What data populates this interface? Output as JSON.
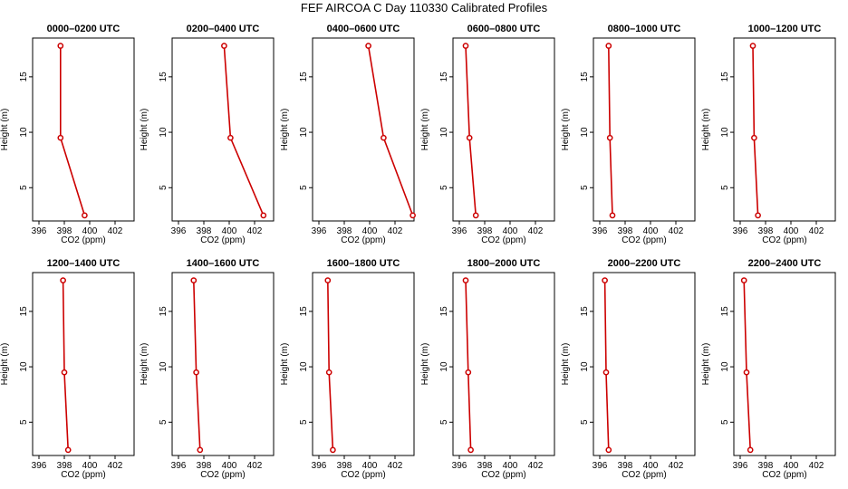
{
  "figure": {
    "title": "FEF  AIRCOA C  Day 110330  Calibrated Profiles"
  },
  "colors": {
    "profile_line": "#cc0000",
    "axis": "#000000"
  },
  "chart_data": [
    {
      "type": "line",
      "title": "0000–0200 UTC",
      "xlabel": "CO2 (ppm)",
      "ylabel": "Height (m)",
      "xlim": [
        395.5,
        403.5
      ],
      "ylim": [
        2,
        18.5
      ],
      "xticks": [
        "396",
        "398",
        "400",
        "402"
      ],
      "yticks": [
        "5",
        "10",
        "15"
      ],
      "series": [
        {
          "x": [
            397.7,
            397.7,
            399.6
          ],
          "y": [
            17.8,
            9.5,
            2.5
          ]
        }
      ]
    },
    {
      "type": "line",
      "title": "0200–0400 UTC",
      "xlabel": "CO2 (ppm)",
      "ylabel": "Height (m)",
      "xlim": [
        395.5,
        403.5
      ],
      "ylim": [
        2,
        18.5
      ],
      "xticks": [
        "396",
        "398",
        "400",
        "402"
      ],
      "yticks": [
        "5",
        "10",
        "15"
      ],
      "series": [
        {
          "x": [
            399.6,
            400.1,
            402.7
          ],
          "y": [
            17.8,
            9.5,
            2.5
          ]
        }
      ]
    },
    {
      "type": "line",
      "title": "0400–0600 UTC",
      "xlabel": "CO2 (ppm)",
      "ylabel": "Height (m)",
      "xlim": [
        395.5,
        403.5
      ],
      "ylim": [
        2,
        18.5
      ],
      "xticks": [
        "396",
        "398",
        "400",
        "402"
      ],
      "yticks": [
        "5",
        "10",
        "15"
      ],
      "series": [
        {
          "x": [
            399.9,
            401.1,
            403.4
          ],
          "y": [
            17.8,
            9.5,
            2.5
          ]
        }
      ]
    },
    {
      "type": "line",
      "title": "0600–0800 UTC",
      "xlabel": "CO2 (ppm)",
      "ylabel": "Height (m)",
      "xlim": [
        395.5,
        403.5
      ],
      "ylim": [
        2,
        18.5
      ],
      "xticks": [
        "396",
        "398",
        "400",
        "402"
      ],
      "yticks": [
        "5",
        "10",
        "15"
      ],
      "series": [
        {
          "x": [
            396.5,
            396.8,
            397.3
          ],
          "y": [
            17.8,
            9.5,
            2.5
          ]
        }
      ]
    },
    {
      "type": "line",
      "title": "0800–1000 UTC",
      "xlabel": "CO2 (ppm)",
      "ylabel": "Height (m)",
      "xlim": [
        395.5,
        403.5
      ],
      "ylim": [
        2,
        18.5
      ],
      "xticks": [
        "396",
        "398",
        "400",
        "402"
      ],
      "yticks": [
        "5",
        "10",
        "15"
      ],
      "series": [
        {
          "x": [
            396.7,
            396.8,
            397.0
          ],
          "y": [
            17.8,
            9.5,
            2.5
          ]
        }
      ]
    },
    {
      "type": "line",
      "title": "1000–1200 UTC",
      "xlabel": "CO2 (ppm)",
      "ylabel": "Height (m)",
      "xlim": [
        395.5,
        403.5
      ],
      "ylim": [
        2,
        18.5
      ],
      "xticks": [
        "396",
        "398",
        "400",
        "402"
      ],
      "yticks": [
        "5",
        "10",
        "15"
      ],
      "series": [
        {
          "x": [
            397.0,
            397.1,
            397.4
          ],
          "y": [
            17.8,
            9.5,
            2.5
          ]
        }
      ]
    },
    {
      "type": "line",
      "title": "1200–1400 UTC",
      "xlabel": "CO2 (ppm)",
      "ylabel": "Height (m)",
      "xlim": [
        395.5,
        403.5
      ],
      "ylim": [
        2,
        18.5
      ],
      "xticks": [
        "396",
        "398",
        "400",
        "402"
      ],
      "yticks": [
        "5",
        "10",
        "15"
      ],
      "series": [
        {
          "x": [
            397.9,
            398.0,
            398.3
          ],
          "y": [
            17.8,
            9.5,
            2.5
          ]
        }
      ]
    },
    {
      "type": "line",
      "title": "1400–1600 UTC",
      "xlabel": "CO2 (ppm)",
      "ylabel": "Height (m)",
      "xlim": [
        395.5,
        403.5
      ],
      "ylim": [
        2,
        18.5
      ],
      "xticks": [
        "396",
        "398",
        "400",
        "402"
      ],
      "yticks": [
        "5",
        "10",
        "15"
      ],
      "series": [
        {
          "x": [
            397.2,
            397.4,
            397.7
          ],
          "y": [
            17.8,
            9.5,
            2.5
          ]
        }
      ]
    },
    {
      "type": "line",
      "title": "1600–1800 UTC",
      "xlabel": "CO2 (ppm)",
      "ylabel": "Height (m)",
      "xlim": [
        395.5,
        403.5
      ],
      "ylim": [
        2,
        18.5
      ],
      "xticks": [
        "396",
        "398",
        "400",
        "402"
      ],
      "yticks": [
        "5",
        "10",
        "15"
      ],
      "series": [
        {
          "x": [
            396.7,
            396.8,
            397.1
          ],
          "y": [
            17.8,
            9.5,
            2.5
          ]
        }
      ]
    },
    {
      "type": "line",
      "title": "1800–2000 UTC",
      "xlabel": "CO2 (ppm)",
      "ylabel": "Height (m)",
      "xlim": [
        395.5,
        403.5
      ],
      "ylim": [
        2,
        18.5
      ],
      "xticks": [
        "396",
        "398",
        "400",
        "402"
      ],
      "yticks": [
        "5",
        "10",
        "15"
      ],
      "series": [
        {
          "x": [
            396.5,
            396.7,
            396.9
          ],
          "y": [
            17.8,
            9.5,
            2.5
          ]
        }
      ]
    },
    {
      "type": "line",
      "title": "2000–2200 UTC",
      "xlabel": "CO2 (ppm)",
      "ylabel": "Height (m)",
      "xlim": [
        395.5,
        403.5
      ],
      "ylim": [
        2,
        18.5
      ],
      "xticks": [
        "396",
        "398",
        "400",
        "402"
      ],
      "yticks": [
        "5",
        "10",
        "15"
      ],
      "series": [
        {
          "x": [
            396.4,
            396.5,
            396.7
          ],
          "y": [
            17.8,
            9.5,
            2.5
          ]
        }
      ]
    },
    {
      "type": "line",
      "title": "2200–2400 UTC",
      "xlabel": "CO2 (ppm)",
      "ylabel": "Height (m)",
      "xlim": [
        395.5,
        403.5
      ],
      "ylim": [
        2,
        18.5
      ],
      "xticks": [
        "396",
        "398",
        "400",
        "402"
      ],
      "yticks": [
        "5",
        "10",
        "15"
      ],
      "series": [
        {
          "x": [
            396.3,
            396.5,
            396.8
          ],
          "y": [
            17.8,
            9.5,
            2.5
          ]
        }
      ]
    }
  ]
}
